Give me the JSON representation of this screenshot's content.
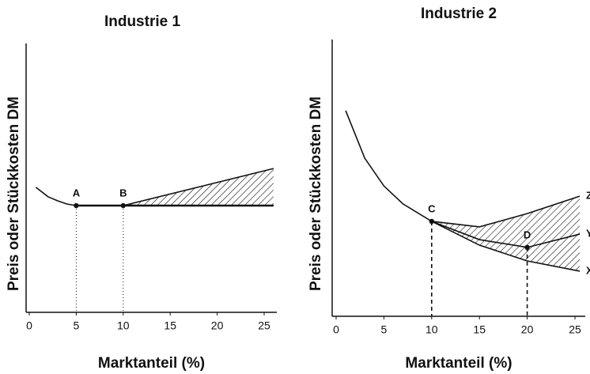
{
  "chart_data": [
    {
      "type": "line",
      "title": "Industrie 1",
      "xlabel": "Marktanteil (%)",
      "ylabel": "Preis oder Stückkosten DM",
      "xlim": [
        0,
        26
      ],
      "ylim": [
        0,
        100
      ],
      "xticks": [
        0,
        5,
        10,
        15,
        20,
        25
      ],
      "color": "#111",
      "drop_style": "dotted",
      "shade_between": [
        1,
        2
      ],
      "series": [
        {
          "x": [
            0.7,
            2,
            3,
            4,
            5
          ],
          "values": [
            46.5,
            43,
            41.5,
            40.3,
            39.7
          ]
        },
        {
          "x": [
            5,
            10,
            26
          ],
          "values": [
            39.7,
            39.7,
            39.7
          ]
        },
        {
          "x": [
            10,
            26
          ],
          "values": [
            39.7,
            53.5
          ]
        }
      ],
      "points": [
        {
          "label": "A",
          "x": 5,
          "y": 39.7
        },
        {
          "label": "B",
          "x": 10,
          "y": 39.7
        }
      ]
    },
    {
      "type": "line",
      "title": "Industrie 2",
      "xlabel": "Marktanteil (%)",
      "ylabel": "Preis oder Stückkosten DM",
      "xlim": [
        0,
        26
      ],
      "ylim": [
        0,
        100
      ],
      "xticks": [
        0,
        5,
        10,
        15,
        20,
        25
      ],
      "color": "#111",
      "drop_style": "dashed",
      "shade_between": [
        1,
        3
      ],
      "series": [
        {
          "x": [
            1,
            3,
            5,
            7,
            10
          ],
          "values": [
            74.3,
            57.1,
            47.1,
            40.6,
            34.3
          ]
        },
        {
          "name": "X",
          "x": [
            10,
            15,
            20,
            25.5
          ],
          "values": [
            34.3,
            25.7,
            20,
            16.3
          ]
        },
        {
          "name": "Y",
          "x": [
            10,
            15,
            20,
            25.5
          ],
          "values": [
            34.3,
            27.7,
            24.9,
            29.7
          ]
        },
        {
          "name": "Z",
          "x": [
            10,
            15,
            20,
            25.5
          ],
          "values": [
            34.3,
            32.3,
            37.1,
            43.4
          ]
        }
      ],
      "points": [
        {
          "label": "C",
          "x": 10,
          "y": 34.3
        },
        {
          "label": "D",
          "x": 20,
          "y": 24.9
        }
      ]
    }
  ]
}
